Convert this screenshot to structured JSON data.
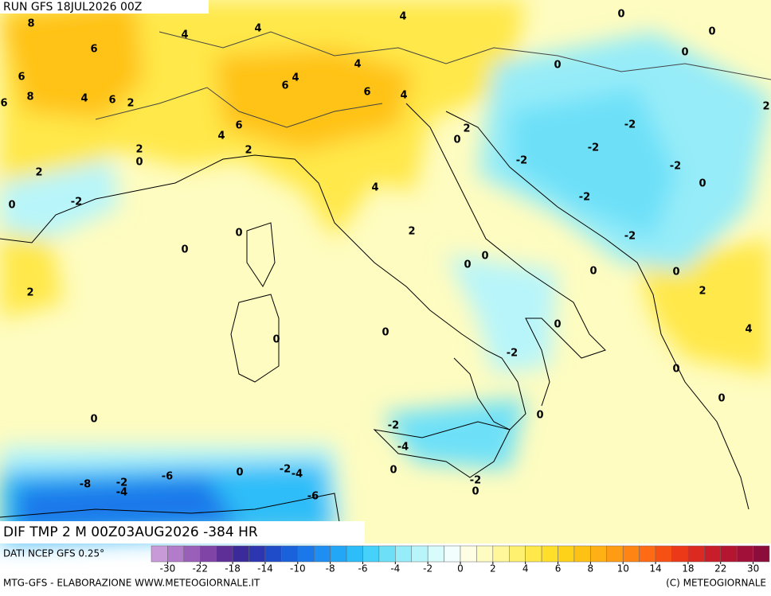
{
  "header": {
    "run": "RUN GFS 18JUL2026 00Z",
    "field": "DIF TMP 2 M 00Z03AUG2026 -384 HR",
    "source": "DATI NCEP GFS 0.25°"
  },
  "contour_labels": [
    8,
    6,
    4,
    4,
    4,
    6,
    8,
    6,
    4,
    6,
    2,
    6,
    4,
    4,
    6,
    4,
    6,
    4,
    2,
    2,
    0,
    2,
    0,
    -2,
    0,
    0,
    2,
    4,
    2,
    2,
    0,
    0,
    0,
    0,
    0,
    2,
    -2,
    -2,
    -2,
    -2,
    -2,
    0,
    -2,
    0,
    0,
    0,
    0,
    2,
    4,
    0,
    0,
    0,
    -2,
    0,
    0,
    0,
    0,
    -2,
    -4,
    0,
    -2,
    -4,
    0,
    -6,
    -8,
    -2,
    -4,
    -6,
    -2,
    0
  ],
  "legend": {
    "ticks": [
      -30,
      -22,
      -18,
      -14,
      -10,
      -8,
      -6,
      -4,
      -2,
      0,
      2,
      4,
      6,
      8,
      10,
      14,
      18,
      22,
      30
    ],
    "colors": [
      "#c89ad8",
      "#b27ccb",
      "#9a5fb9",
      "#7f44a6",
      "#5e2f96",
      "#3a2a9a",
      "#2b36b0",
      "#1f4cc8",
      "#1a62db",
      "#1a78ea",
      "#1e8ef2",
      "#22a6f6",
      "#2dbdf8",
      "#45d1fa",
      "#6de0f8",
      "#96ecf8",
      "#b8f5fa",
      "#d8fbfc",
      "#f2fefe",
      "#fefee4",
      "#fefcc0",
      "#fff79a",
      "#fff170",
      "#ffe94a",
      "#ffdf2a",
      "#ffd21a",
      "#ffc214",
      "#ffb014",
      "#ff9c14",
      "#ff8414",
      "#ff6a14",
      "#f75014",
      "#ec3a18",
      "#dc2a20",
      "#c81e2a",
      "#b41632",
      "#a01038",
      "#8c0c3c"
    ]
  },
  "footer": {
    "left": "MTG-GFS - ELABORAZIONE WWW.METEOGIORNALE.IT",
    "right": "(C) METEOGIORNALE"
  }
}
